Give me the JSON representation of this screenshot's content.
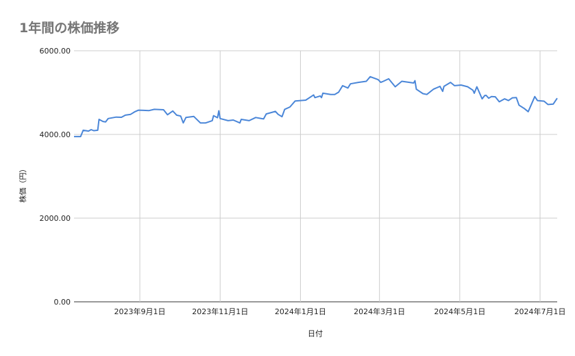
{
  "chart_data": {
    "type": "line",
    "title": "1年間の株価推移",
    "xlabel": "日付",
    "ylabel": "株価（円）",
    "xlim": [
      "2023-07-13",
      "2024-07-14"
    ],
    "ylim": [
      0,
      6000
    ],
    "y_ticks": [
      "0.00",
      "2000.00",
      "4000.00",
      "6000.00"
    ],
    "y_tick_values": [
      0,
      2000,
      4000,
      6000
    ],
    "x_ticks": [
      {
        "date": "2023-09-01",
        "label": "2023年9月1日"
      },
      {
        "date": "2023-11-01",
        "label": "2023年11月1日"
      },
      {
        "date": "2024-01-01",
        "label": "2024年1月1日"
      },
      {
        "date": "2024-03-01",
        "label": "2024年3月1日"
      },
      {
        "date": "2024-05-01",
        "label": "2024年5月1日"
      },
      {
        "date": "2024-07-01",
        "label": "2024年7月1日"
      }
    ],
    "grid": true,
    "legend": "none",
    "line_color": "#4a86d8",
    "series": [
      {
        "x": [
          "2023-07-13",
          "2023-07-18",
          "2023-07-20",
          "2023-07-24",
          "2023-07-26",
          "2023-07-28",
          "2023-07-31",
          "2023-08-01",
          "2023-08-04",
          "2023-08-06",
          "2023-08-08",
          "2023-08-14",
          "2023-08-18",
          "2023-08-21",
          "2023-08-25",
          "2023-08-28",
          "2023-08-31",
          "2023-09-04",
          "2023-09-08",
          "2023-09-12",
          "2023-09-19",
          "2023-09-22",
          "2023-09-26",
          "2023-09-29",
          "2023-10-02",
          "2023-10-04",
          "2023-10-06",
          "2023-10-12",
          "2023-10-17",
          "2023-10-21",
          "2023-10-26",
          "2023-10-27",
          "2023-10-30",
          "2023-10-31",
          "2023-11-01",
          "2023-11-07",
          "2023-11-11",
          "2023-11-16",
          "2023-11-17",
          "2023-11-23",
          "2023-11-28",
          "2023-12-04",
          "2023-12-06",
          "2023-12-13",
          "2023-12-15",
          "2023-12-18",
          "2023-12-20",
          "2023-12-24",
          "2023-12-28",
          "2024-01-05",
          "2024-01-11",
          "2024-01-12",
          "2024-01-16",
          "2024-01-17",
          "2024-01-18",
          "2024-01-24",
          "2024-01-27",
          "2024-01-30",
          "2024-02-02",
          "2024-02-06",
          "2024-02-08",
          "2024-02-14",
          "2024-02-20",
          "2024-02-23",
          "2024-02-29",
          "2024-03-02",
          "2024-03-04",
          "2024-03-08",
          "2024-03-13",
          "2024-03-18",
          "2024-03-27",
          "2024-03-28",
          "2024-03-29",
          "2024-04-03",
          "2024-04-06",
          "2024-04-11",
          "2024-04-16",
          "2024-04-18",
          "2024-04-19",
          "2024-04-24",
          "2024-04-27",
          "2024-05-02",
          "2024-05-07",
          "2024-05-11",
          "2024-05-12",
          "2024-05-14",
          "2024-05-18",
          "2024-05-20",
          "2024-05-21",
          "2024-05-23",
          "2024-05-25",
          "2024-05-28",
          "2024-05-31",
          "2024-06-04",
          "2024-06-07",
          "2024-06-10",
          "2024-06-13",
          "2024-06-15",
          "2024-06-19",
          "2024-06-22",
          "2024-06-27",
          "2024-06-29",
          "2024-07-04",
          "2024-07-07",
          "2024-07-11",
          "2024-07-14"
        ],
        "y": [
          3950,
          3950,
          4100,
          4080,
          4115,
          4090,
          4100,
          4360,
          4310,
          4300,
          4380,
          4415,
          4410,
          4460,
          4480,
          4540,
          4580,
          4575,
          4570,
          4600,
          4590,
          4470,
          4560,
          4460,
          4440,
          4275,
          4405,
          4430,
          4275,
          4275,
          4330,
          4450,
          4400,
          4565,
          4380,
          4330,
          4345,
          4275,
          4360,
          4330,
          4405,
          4370,
          4490,
          4550,
          4480,
          4425,
          4600,
          4655,
          4800,
          4820,
          4945,
          4880,
          4920,
          4880,
          4985,
          4955,
          4955,
          5010,
          5165,
          5110,
          5210,
          5245,
          5270,
          5380,
          5310,
          5245,
          5270,
          5330,
          5140,
          5270,
          5230,
          5285,
          5080,
          4975,
          4955,
          5080,
          5150,
          5030,
          5150,
          5245,
          5165,
          5180,
          5140,
          5055,
          4985,
          5140,
          4850,
          4930,
          4935,
          4865,
          4905,
          4900,
          4780,
          4850,
          4810,
          4875,
          4880,
          4700,
          4620,
          4545,
          4905,
          4810,
          4795,
          4715,
          4725,
          4865
        ]
      }
    ]
  }
}
